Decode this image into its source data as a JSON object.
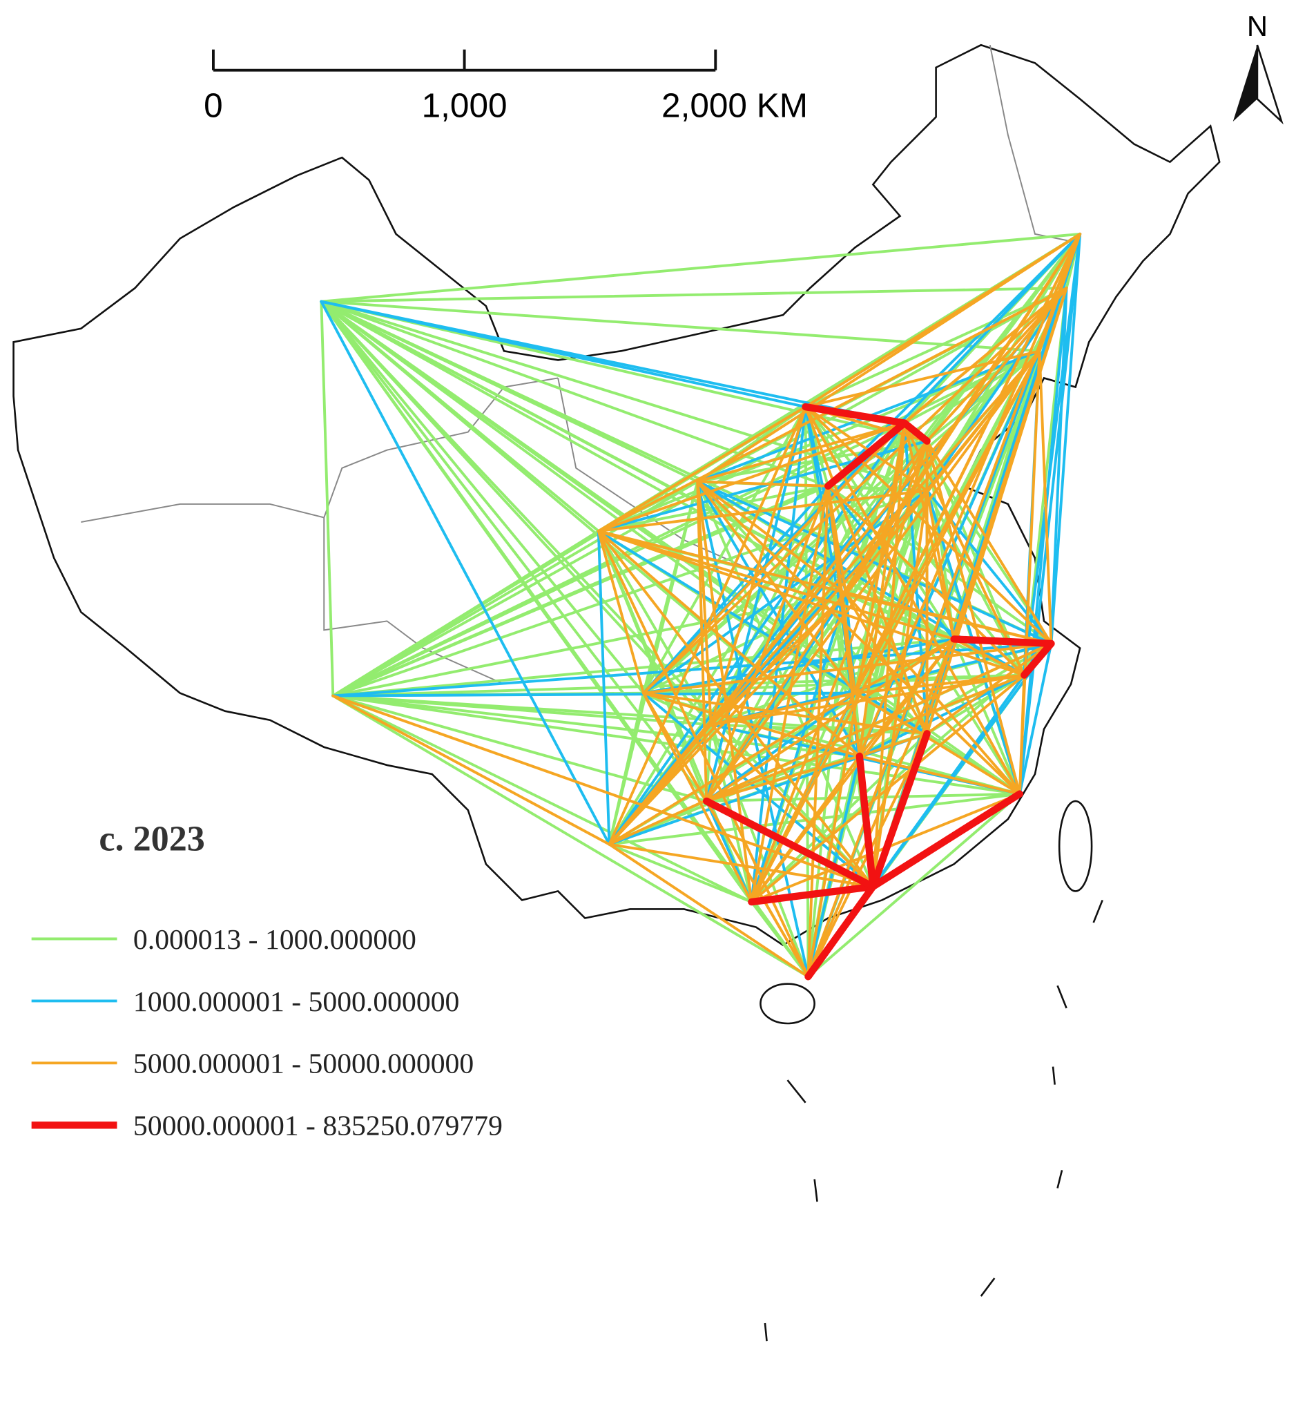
{
  "title": "c. 2023",
  "north_label": "N",
  "scale_bar": {
    "labels": [
      "0",
      "1,000",
      "2,000 KM"
    ]
  },
  "legend": [
    {
      "label": "0.000013 - 1000.000000",
      "color": "#93ec6f"
    },
    {
      "label": "1000.000001 - 5000.000000",
      "color": "#1ebdf0"
    },
    {
      "label": "5000.000001 - 50000.000000",
      "color": "#f5a623"
    },
    {
      "label": "50000.000001 - 835250.079779",
      "color": "#f21212"
    }
  ]
}
